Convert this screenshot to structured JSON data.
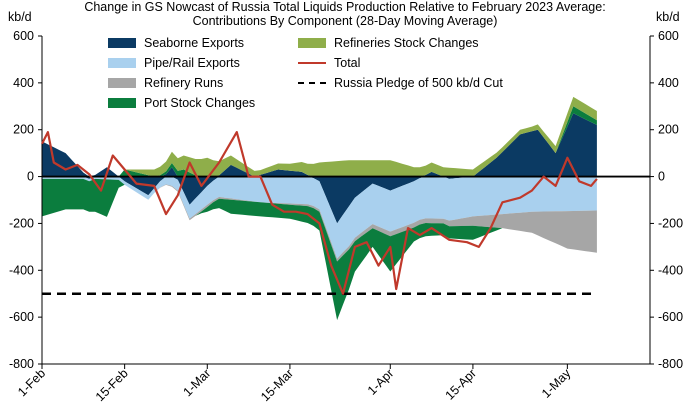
{
  "chart_data": {
    "type": "area",
    "title": "Change in GS Nowcast of Russia Total Liquids Production Relative to February 2023 Average:",
    "subtitle": "Contributions By Component (28-Day Moving Average)",
    "ylabel_left": "kb/d",
    "ylabel_right": "kb/d",
    "ylim": [
      -800,
      600
    ],
    "yticks": [
      -800,
      -600,
      -400,
      -200,
      0,
      200,
      400,
      600
    ],
    "xticks": [
      "1-Feb",
      "15-Feb",
      "1-Mar",
      "15-Mar",
      "1-Apr",
      "15-Apr",
      "1-May"
    ],
    "x_start": "2023-02-01",
    "x_end": "2023-05-15",
    "series": [
      {
        "name": "Seaborne Exports",
        "color": "#0b3a63",
        "points": [
          [
            "2023-02-01",
            150
          ],
          [
            "2023-02-05",
            100
          ],
          [
            "2023-02-09",
            -10
          ],
          [
            "2023-02-12",
            40
          ],
          [
            "2023-02-15",
            -20
          ],
          [
            "2023-02-19",
            -80
          ],
          [
            "2023-02-23",
            40
          ],
          [
            "2023-02-26",
            -120
          ],
          [
            "2023-03-01",
            -40
          ],
          [
            "2023-03-05",
            50
          ],
          [
            "2023-03-09",
            0
          ],
          [
            "2023-03-13",
            30
          ],
          [
            "2023-03-17",
            20
          ],
          [
            "2023-03-20",
            -20
          ],
          [
            "2023-03-23",
            -200
          ],
          [
            "2023-03-26",
            -90
          ],
          [
            "2023-03-29",
            -30
          ],
          [
            "2023-04-01",
            -60
          ],
          [
            "2023-04-05",
            -20
          ],
          [
            "2023-04-08",
            20
          ],
          [
            "2023-04-11",
            -10
          ],
          [
            "2023-04-15",
            0
          ],
          [
            "2023-04-19",
            80
          ],
          [
            "2023-04-23",
            180
          ],
          [
            "2023-04-26",
            200
          ],
          [
            "2023-04-29",
            100
          ],
          [
            "2023-05-02",
            270
          ],
          [
            "2023-05-06",
            220
          ]
        ]
      },
      {
        "name": "Pipe/Rail Exports",
        "color": "#a9d0ee",
        "points": [
          [
            "2023-02-01",
            -10
          ],
          [
            "2023-02-10",
            -10
          ],
          [
            "2023-02-20",
            -20
          ],
          [
            "2023-03-01",
            -80
          ],
          [
            "2023-03-10",
            -110
          ],
          [
            "2023-03-20",
            -120
          ],
          [
            "2023-03-25",
            -170
          ],
          [
            "2023-04-01",
            -175
          ],
          [
            "2023-04-10",
            -180
          ],
          [
            "2023-04-20",
            -160
          ],
          [
            "2023-04-25",
            -150
          ],
          [
            "2023-05-06",
            -145
          ]
        ]
      },
      {
        "name": "Refinery Runs",
        "color": "#a6a6a6",
        "points": [
          [
            "2023-02-01",
            0
          ],
          [
            "2023-02-20",
            0
          ],
          [
            "2023-03-01",
            -10
          ],
          [
            "2023-03-10",
            0
          ],
          [
            "2023-03-20",
            -10
          ],
          [
            "2023-04-01",
            -20
          ],
          [
            "2023-04-10",
            -20
          ],
          [
            "2023-04-20",
            -60
          ],
          [
            "2023-04-25",
            -90
          ],
          [
            "2023-05-01",
            -160
          ],
          [
            "2023-05-06",
            -180
          ]
        ]
      },
      {
        "name": "Port Stock Changes",
        "color": "#0b7d3e",
        "points": [
          [
            "2023-02-01",
            -160
          ],
          [
            "2023-02-05",
            -130
          ],
          [
            "2023-02-09",
            -130
          ],
          [
            "2023-02-12",
            -160
          ],
          [
            "2023-02-15",
            30
          ],
          [
            "2023-02-20",
            0
          ],
          [
            "2023-02-25",
            30
          ],
          [
            "2023-03-01",
            -20
          ],
          [
            "2023-03-05",
            -60
          ],
          [
            "2023-03-10",
            -60
          ],
          [
            "2023-03-15",
            -60
          ],
          [
            "2023-03-20",
            -80
          ],
          [
            "2023-03-23",
            -250
          ],
          [
            "2023-03-26",
            -130
          ],
          [
            "2023-03-29",
            -80
          ],
          [
            "2023-04-01",
            -150
          ],
          [
            "2023-04-05",
            -60
          ],
          [
            "2023-04-10",
            -50
          ],
          [
            "2023-04-15",
            -60
          ],
          [
            "2023-04-20",
            0
          ],
          [
            "2023-04-25",
            0
          ],
          [
            "2023-04-29",
            0
          ],
          [
            "2023-05-02",
            30
          ],
          [
            "2023-05-06",
            20
          ]
        ]
      },
      {
        "name": "Refineries Stock Changes",
        "color": "#8fae4a",
        "points": [
          [
            "2023-02-01",
            0
          ],
          [
            "2023-02-15",
            0
          ],
          [
            "2023-02-25",
            60
          ],
          [
            "2023-03-01",
            80
          ],
          [
            "2023-03-05",
            40
          ],
          [
            "2023-03-10",
            20
          ],
          [
            "2023-03-15",
            30
          ],
          [
            "2023-03-20",
            60
          ],
          [
            "2023-03-25",
            70
          ],
          [
            "2023-04-01",
            70
          ],
          [
            "2023-04-05",
            40
          ],
          [
            "2023-04-10",
            40
          ],
          [
            "2023-04-15",
            30
          ],
          [
            "2023-04-20",
            20
          ],
          [
            "2023-04-25",
            20
          ],
          [
            "2023-04-29",
            30
          ],
          [
            "2023-05-02",
            40
          ],
          [
            "2023-05-06",
            40
          ]
        ]
      },
      {
        "name": "Total",
        "type": "line",
        "color": "#c0392b",
        "points": [
          [
            "2023-02-01",
            140
          ],
          [
            "2023-02-02",
            190
          ],
          [
            "2023-02-03",
            60
          ],
          [
            "2023-02-05",
            30
          ],
          [
            "2023-02-07",
            50
          ],
          [
            "2023-02-09",
            10
          ],
          [
            "2023-02-11",
            -60
          ],
          [
            "2023-02-13",
            90
          ],
          [
            "2023-02-15",
            30
          ],
          [
            "2023-02-17",
            -30
          ],
          [
            "2023-02-20",
            -40
          ],
          [
            "2023-02-22",
            -160
          ],
          [
            "2023-02-24",
            -80
          ],
          [
            "2023-02-26",
            60
          ],
          [
            "2023-02-28",
            -40
          ],
          [
            "2023-03-03",
            60
          ],
          [
            "2023-03-06",
            190
          ],
          [
            "2023-03-08",
            0
          ],
          [
            "2023-03-10",
            0
          ],
          [
            "2023-03-12",
            -120
          ],
          [
            "2023-03-14",
            -150
          ],
          [
            "2023-03-16",
            -150
          ],
          [
            "2023-03-18",
            -160
          ],
          [
            "2023-03-20",
            -200
          ],
          [
            "2023-03-22",
            -380
          ],
          [
            "2023-03-24",
            -500
          ],
          [
            "2023-03-26",
            -300
          ],
          [
            "2023-03-28",
            -280
          ],
          [
            "2023-03-30",
            -380
          ],
          [
            "2023-04-01",
            -300
          ],
          [
            "2023-04-02",
            -480
          ],
          [
            "2023-04-04",
            -220
          ],
          [
            "2023-04-06",
            -250
          ],
          [
            "2023-04-08",
            -220
          ],
          [
            "2023-04-11",
            -270
          ],
          [
            "2023-04-14",
            -280
          ],
          [
            "2023-04-16",
            -300
          ],
          [
            "2023-04-18",
            -220
          ],
          [
            "2023-04-20",
            -110
          ],
          [
            "2023-04-23",
            -90
          ],
          [
            "2023-04-25",
            -60
          ],
          [
            "2023-04-27",
            0
          ],
          [
            "2023-04-29",
            -40
          ],
          [
            "2023-05-01",
            80
          ],
          [
            "2023-05-03",
            -20
          ],
          [
            "2023-05-05",
            -40
          ],
          [
            "2023-05-06",
            -10
          ]
        ]
      },
      {
        "name": "Russia Pledge of 500 kb/d Cut",
        "type": "hline",
        "color": "#000000",
        "value": -500
      }
    ]
  }
}
